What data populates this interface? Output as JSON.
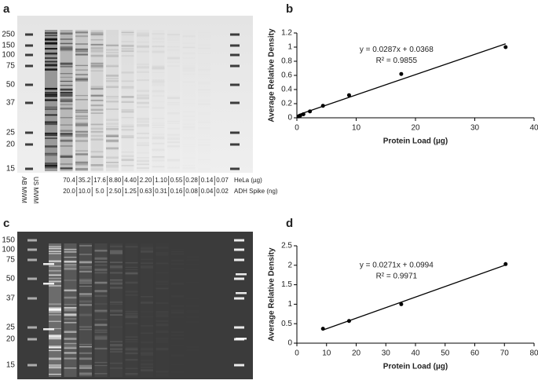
{
  "panel_labels": [
    "a",
    "b",
    "c",
    "d"
  ],
  "gels": [
    {
      "mw_labels": [
        "250",
        "150",
        "100",
        "75",
        "50",
        "37",
        "25",
        "20",
        "15"
      ],
      "lane_labels": [
        "AB MWM",
        "US MWM"
      ],
      "table": {
        "row_labels": [
          "HeLa (µg)",
          "ADH Spike (ng)"
        ],
        "rows": [
          [
            "70.4",
            "35.2",
            "17.6",
            "8.80",
            "4.40",
            "2.20",
            "1.10",
            "0.55",
            "0.28",
            "0.14",
            "0.07"
          ],
          [
            "20.0",
            "10.0",
            "5.0",
            "2.50",
            "1.25",
            "0.63",
            "0.31",
            "0.16",
            "0.08",
            "0.04",
            "0.02"
          ]
        ]
      }
    },
    {
      "mw_labels": [
        "150",
        "100",
        "75",
        "50",
        "37",
        "25",
        "20",
        "15"
      ]
    }
  ],
  "chart_data": [
    {
      "type": "scatter",
      "x_label": "Protein Load (µg)",
      "y_label": "Average Relative Density",
      "x": [
        0.28,
        0.55,
        1.1,
        2.2,
        4.4,
        8.8,
        17.6,
        35.2
      ],
      "y": [
        0.02,
        0.03,
        0.05,
        0.09,
        0.17,
        0.32,
        0.62,
        1.0
      ],
      "xlim": [
        0,
        40
      ],
      "xticks": [
        0,
        10,
        20,
        30,
        40
      ],
      "ylim": [
        0,
        1.2
      ],
      "yticks": [
        0,
        0.2,
        0.4,
        0.6,
        0.8,
        1,
        1.2
      ],
      "fit": {
        "slope": 0.0287,
        "intercept": 0.0368,
        "label": "y = 0.0287x + 0.0368",
        "r2_label": "R² = 0.9855"
      },
      "color": "#000000"
    },
    {
      "type": "scatter",
      "x_label": "Protein Load (µg)",
      "y_label": "Average Relative Density",
      "x": [
        8.8,
        17.6,
        35.2,
        70.4
      ],
      "y": [
        0.37,
        0.57,
        1.0,
        2.03
      ],
      "xlim": [
        0,
        80
      ],
      "xticks": [
        0,
        10,
        20,
        30,
        40,
        50,
        60,
        70,
        80
      ],
      "ylim": [
        0,
        2.5
      ],
      "yticks": [
        0,
        0.5,
        1,
        1.5,
        2,
        2.5
      ],
      "fit": {
        "slope": 0.0271,
        "intercept": 0.0994,
        "label": "y = 0.0271x + 0.0994",
        "r2_label": "R² = 0.9971"
      },
      "color": "#000000"
    }
  ]
}
